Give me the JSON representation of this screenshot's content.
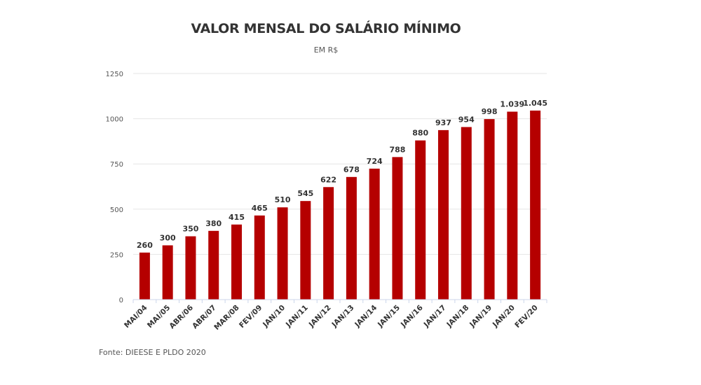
{
  "chart_data": {
    "type": "bar",
    "title": "VALOR MENSAL DO SALÁRIO MÍNIMO",
    "subtitle": "EM R$",
    "categories": [
      "MAI/04",
      "MAI/05",
      "ABR/06",
      "ABR/07",
      "MAR/08",
      "FEV/09",
      "JAN/10",
      "JAN/11",
      "JAN/12",
      "JAN/13",
      "JAN/14",
      "JAN/15",
      "JAN/16",
      "JAN/17",
      "JAN/18",
      "JAN/19",
      "JAN/20",
      "FEV/20"
    ],
    "values": [
      260,
      300,
      350,
      380,
      415,
      465,
      510,
      545,
      622,
      678,
      724,
      788,
      880,
      937,
      954,
      998,
      1039,
      1045
    ],
    "value_labels": [
      "260",
      "300",
      "350",
      "380",
      "415",
      "465",
      "510",
      "545",
      "622",
      "678",
      "724",
      "788",
      "880",
      "937",
      "954",
      "998",
      "1.039",
      "1.045"
    ],
    "ylim": [
      0,
      1250
    ],
    "yticks": [
      0,
      250,
      500,
      750,
      1000,
      1250
    ],
    "grid": true,
    "legend": "none",
    "bar_color": "#b50000",
    "source": "Fonte: DIEESE E PLDO 2020"
  }
}
